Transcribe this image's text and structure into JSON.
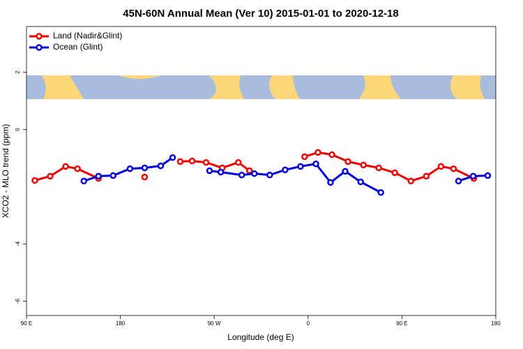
{
  "chart_data": {
    "type": "line",
    "title": "45N-60N Annual Mean (Ver 10)   2015-01-01 to 2020-12-18",
    "x_label": "Longitude (deg E)",
    "y_label": "XCO2 - MLO trend (ppm)",
    "xlim": [
      90,
      540
    ],
    "ylim": [
      -6.5,
      3.6
    ],
    "xticks": [
      {
        "value": 90,
        "label": "90 E"
      },
      180,
      {
        "value": 270,
        "label": "90 W"
      },
      {
        "value": 360,
        "label": "0"
      },
      {
        "value": 450,
        "label": "90 E"
      },
      {
        "value": 540,
        "label": "180"
      }
    ],
    "yticks": [
      2,
      0,
      -4,
      -6
    ],
    "legend": "top-left",
    "series": [
      {
        "name": "Land (Nadir&Glint)",
        "color": "#ee0000",
        "x": [
          98.0,
          112.8,
          127.5,
          138.9,
          159.0,
          null,
          203.3,
          null,
          237.4,
          248.8,
          262.2,
          277.7,
          293.1,
          303.8,
          null,
          356.7,
          369.5,
          382.9,
          398.3,
          413.1,
          427.8,
          443.2,
          458.6,
          473.4,
          487.4,
          499.5,
          518.9
        ],
        "values": [
          -1.78,
          -1.63,
          -1.29,
          -1.37,
          -1.71,
          null,
          -1.66,
          null,
          -1.12,
          -1.1,
          -1.15,
          -1.34,
          -1.15,
          -1.44,
          null,
          -0.95,
          -0.8,
          -0.88,
          -1.12,
          -1.24,
          -1.34,
          -1.51,
          -1.8,
          -1.63,
          -1.29,
          -1.37,
          -1.71
        ]
      },
      {
        "name": "Ocean (Glint)",
        "color": "#0000dd",
        "x": [
          145.0,
          159.0,
          173.1,
          189.2,
          203.3,
          218.7,
          230.1,
          null,
          265.5,
          276.3,
          296.4,
          308.5,
          323.2,
          338.0,
          352.7,
          367.5,
          381.5,
          395.6,
          410.4,
          429.8,
          null,
          504.2,
          518.3,
          532.3
        ],
        "values": [
          -1.8,
          -1.63,
          -1.61,
          -1.37,
          -1.34,
          -1.27,
          -0.98,
          null,
          -1.44,
          -1.49,
          -1.59,
          -1.54,
          -1.59,
          -1.41,
          -1.29,
          -1.2,
          -1.85,
          -1.46,
          -1.83,
          -2.2,
          null,
          -1.8,
          -1.63,
          -1.61
        ]
      }
    ]
  }
}
